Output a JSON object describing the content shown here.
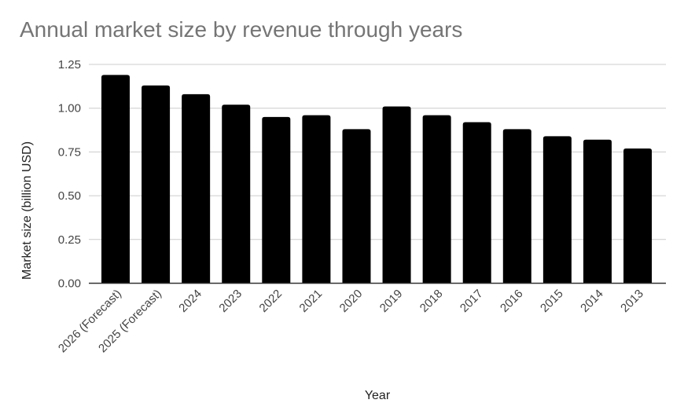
{
  "chart_data": {
    "type": "bar",
    "title": "Annual market size by revenue through years",
    "xlabel": "Year",
    "ylabel": "Market size (billion USD)",
    "categories": [
      "2026 (Forecast)",
      "2025 (Forecast)",
      "2024",
      "2023",
      "2022",
      "2021",
      "2020",
      "2019",
      "2018",
      "2017",
      "2016",
      "2015",
      "2014",
      "2013"
    ],
    "values": [
      1.19,
      1.13,
      1.08,
      1.02,
      0.95,
      0.96,
      0.88,
      1.01,
      0.96,
      0.92,
      0.88,
      0.84,
      0.82,
      0.77
    ],
    "ylim": [
      0,
      1.25
    ],
    "yticks": [
      "0.00",
      "0.25",
      "0.50",
      "0.75",
      "1.00",
      "1.25"
    ],
    "ytick_values": [
      0,
      0.25,
      0.5,
      0.75,
      1.0,
      1.25
    ],
    "grid": true,
    "legend": "none",
    "bar_color": "#000000",
    "xtick_rotation_deg": -45
  }
}
